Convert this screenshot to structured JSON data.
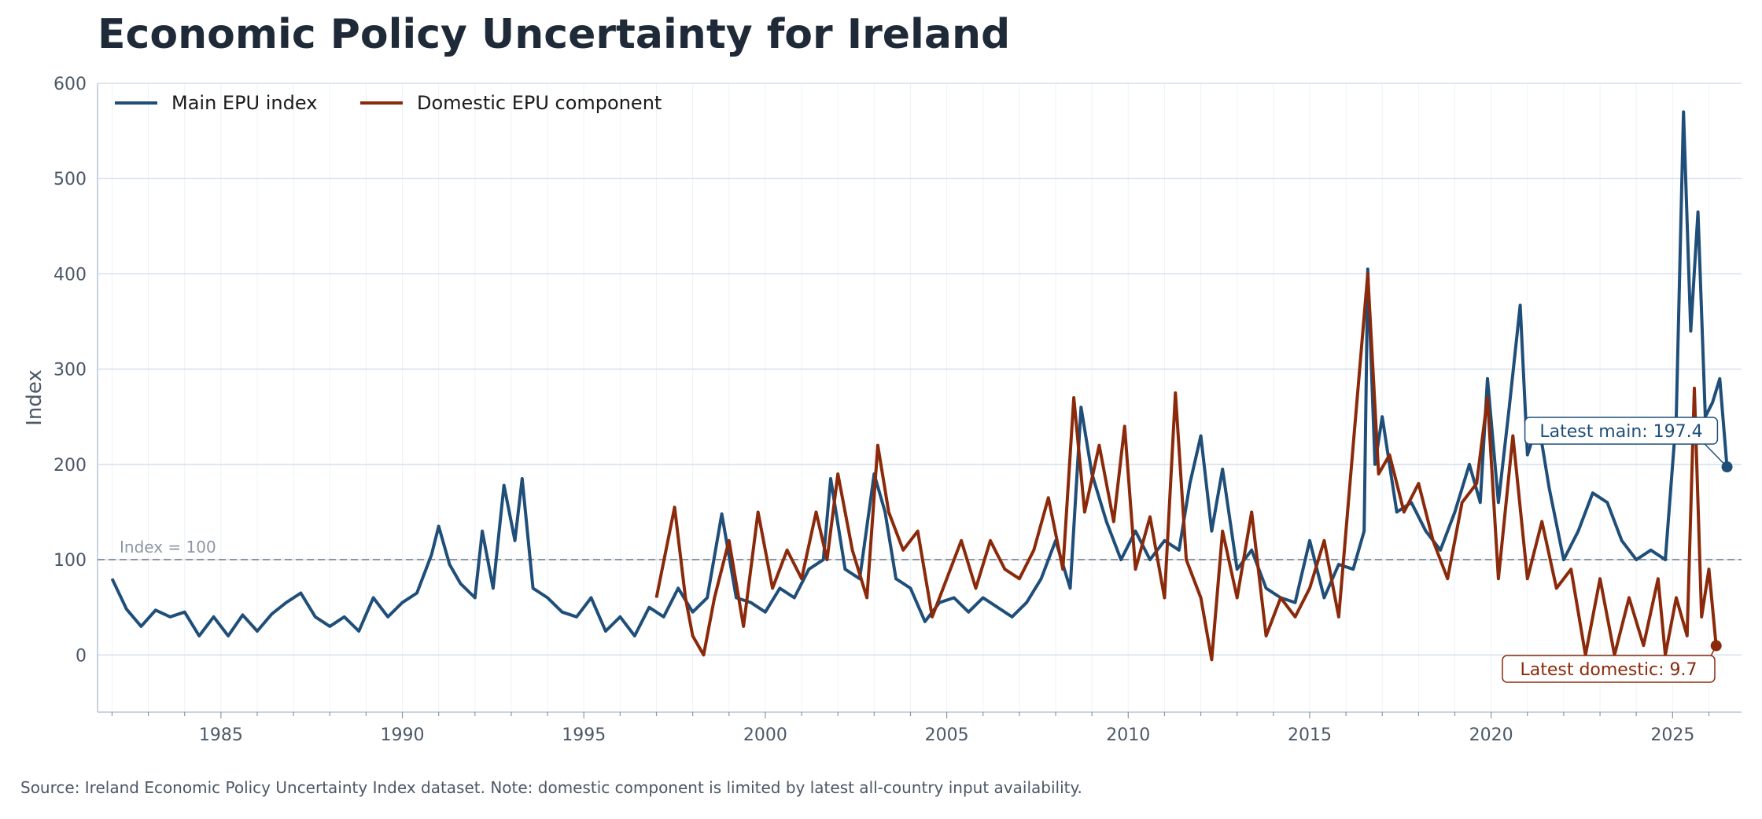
{
  "title": "Economic Policy Uncertainty for Ireland",
  "source_note": "Source: Ireland Economic Policy Uncertainty Index dataset. Note: domestic component is limited by latest all-country input availability.",
  "colors": {
    "main": "#1f4e79",
    "domestic": "#8b2a0a",
    "reference": "#8c96a3",
    "grid": "#d6dfeb",
    "axis_text": "#4c5867"
  },
  "chart_data": {
    "type": "line",
    "title": "Economic Policy Uncertainty for Ireland",
    "xlabel": "",
    "ylabel": "Index",
    "xlim": [
      1981.6,
      2026.9
    ],
    "ylim": [
      -60,
      600
    ],
    "x_ticks": [
      1985,
      1990,
      1995,
      2000,
      2005,
      2010,
      2015,
      2020,
      2025
    ],
    "y_ticks": [
      0,
      100,
      200,
      300,
      400,
      500,
      600
    ],
    "grid": true,
    "legend_position": "top-left",
    "reference_line": {
      "y": 100,
      "label": "Index = 100"
    },
    "series": [
      {
        "name": "Main EPU index",
        "points": [
          [
            1982.0,
            80
          ],
          [
            1982.4,
            48
          ],
          [
            1982.8,
            30
          ],
          [
            1983.2,
            47
          ],
          [
            1983.6,
            40
          ],
          [
            1984.0,
            45
          ],
          [
            1984.4,
            20
          ],
          [
            1984.8,
            40
          ],
          [
            1985.2,
            20
          ],
          [
            1985.6,
            42
          ],
          [
            1986.0,
            25
          ],
          [
            1986.4,
            43
          ],
          [
            1986.8,
            55
          ],
          [
            1987.2,
            65
          ],
          [
            1987.6,
            40
          ],
          [
            1988.0,
            30
          ],
          [
            1988.4,
            40
          ],
          [
            1988.8,
            25
          ],
          [
            1989.2,
            60
          ],
          [
            1989.6,
            40
          ],
          [
            1990.0,
            55
          ],
          [
            1990.4,
            65
          ],
          [
            1990.8,
            105
          ],
          [
            1991.0,
            135
          ],
          [
            1991.3,
            95
          ],
          [
            1991.6,
            75
          ],
          [
            1992.0,
            60
          ],
          [
            1992.2,
            130
          ],
          [
            1992.5,
            70
          ],
          [
            1992.8,
            178
          ],
          [
            1993.1,
            120
          ],
          [
            1993.3,
            185
          ],
          [
            1993.6,
            70
          ],
          [
            1994.0,
            60
          ],
          [
            1994.4,
            45
          ],
          [
            1994.8,
            40
          ],
          [
            1995.2,
            60
          ],
          [
            1995.6,
            25
          ],
          [
            1996.0,
            40
          ],
          [
            1996.4,
            20
          ],
          [
            1996.8,
            50
          ],
          [
            1997.2,
            40
          ],
          [
            1997.6,
            70
          ],
          [
            1998.0,
            45
          ],
          [
            1998.4,
            60
          ],
          [
            1998.8,
            148
          ],
          [
            1999.2,
            60
          ],
          [
            1999.6,
            55
          ],
          [
            2000.0,
            45
          ],
          [
            2000.4,
            70
          ],
          [
            2000.8,
            60
          ],
          [
            2001.2,
            90
          ],
          [
            2001.6,
            100
          ],
          [
            2001.8,
            185
          ],
          [
            2002.2,
            90
          ],
          [
            2002.6,
            80
          ],
          [
            2003.0,
            190
          ],
          [
            2003.3,
            150
          ],
          [
            2003.6,
            80
          ],
          [
            2004.0,
            70
          ],
          [
            2004.4,
            35
          ],
          [
            2004.8,
            55
          ],
          [
            2005.2,
            60
          ],
          [
            2005.6,
            45
          ],
          [
            2006.0,
            60
          ],
          [
            2006.4,
            50
          ],
          [
            2006.8,
            40
          ],
          [
            2007.2,
            55
          ],
          [
            2007.6,
            80
          ],
          [
            2008.0,
            120
          ],
          [
            2008.4,
            70
          ],
          [
            2008.7,
            260
          ],
          [
            2009.0,
            190
          ],
          [
            2009.4,
            140
          ],
          [
            2009.8,
            100
          ],
          [
            2010.2,
            130
          ],
          [
            2010.6,
            100
          ],
          [
            2011.0,
            120
          ],
          [
            2011.4,
            110
          ],
          [
            2011.7,
            180
          ],
          [
            2012.0,
            230
          ],
          [
            2012.3,
            130
          ],
          [
            2012.6,
            195
          ],
          [
            2013.0,
            90
          ],
          [
            2013.4,
            110
          ],
          [
            2013.8,
            70
          ],
          [
            2014.2,
            60
          ],
          [
            2014.6,
            55
          ],
          [
            2015.0,
            120
          ],
          [
            2015.4,
            60
          ],
          [
            2015.8,
            95
          ],
          [
            2016.2,
            90
          ],
          [
            2016.5,
            130
          ],
          [
            2016.6,
            405
          ],
          [
            2016.8,
            200
          ],
          [
            2017.0,
            250
          ],
          [
            2017.4,
            150
          ],
          [
            2017.8,
            160
          ],
          [
            2018.2,
            130
          ],
          [
            2018.6,
            110
          ],
          [
            2019.0,
            150
          ],
          [
            2019.4,
            200
          ],
          [
            2019.7,
            160
          ],
          [
            2019.9,
            290
          ],
          [
            2020.2,
            160
          ],
          [
            2020.5,
            260
          ],
          [
            2020.8,
            367
          ],
          [
            2021.0,
            210
          ],
          [
            2021.3,
            245
          ],
          [
            2021.6,
            175
          ],
          [
            2022.0,
            100
          ],
          [
            2022.4,
            130
          ],
          [
            2022.8,
            170
          ],
          [
            2023.2,
            160
          ],
          [
            2023.6,
            120
          ],
          [
            2024.0,
            100
          ],
          [
            2024.4,
            110
          ],
          [
            2024.8,
            100
          ],
          [
            2025.1,
            250
          ],
          [
            2025.3,
            570
          ],
          [
            2025.5,
            340
          ],
          [
            2025.7,
            465
          ],
          [
            2025.9,
            250
          ],
          [
            2026.1,
            265
          ],
          [
            2026.3,
            290
          ],
          [
            2026.5,
            197.4
          ]
        ]
      },
      {
        "name": "Domestic EPU component",
        "points": [
          [
            1997.0,
            60
          ],
          [
            1997.5,
            155
          ],
          [
            1997.8,
            60
          ],
          [
            1998.0,
            20
          ],
          [
            1998.3,
            0
          ],
          [
            1998.6,
            60
          ],
          [
            1999.0,
            120
          ],
          [
            1999.4,
            30
          ],
          [
            1999.8,
            150
          ],
          [
            2000.2,
            70
          ],
          [
            2000.6,
            110
          ],
          [
            2001.0,
            80
          ],
          [
            2001.4,
            150
          ],
          [
            2001.7,
            100
          ],
          [
            2002.0,
            190
          ],
          [
            2002.4,
            110
          ],
          [
            2002.8,
            60
          ],
          [
            2003.1,
            220
          ],
          [
            2003.4,
            150
          ],
          [
            2003.8,
            110
          ],
          [
            2004.2,
            130
          ],
          [
            2004.6,
            40
          ],
          [
            2005.0,
            80
          ],
          [
            2005.4,
            120
          ],
          [
            2005.8,
            70
          ],
          [
            2006.2,
            120
          ],
          [
            2006.6,
            90
          ],
          [
            2007.0,
            80
          ],
          [
            2007.4,
            110
          ],
          [
            2007.8,
            165
          ],
          [
            2008.2,
            90
          ],
          [
            2008.5,
            270
          ],
          [
            2008.8,
            150
          ],
          [
            2009.2,
            220
          ],
          [
            2009.6,
            140
          ],
          [
            2009.9,
            240
          ],
          [
            2010.2,
            90
          ],
          [
            2010.6,
            145
          ],
          [
            2011.0,
            60
          ],
          [
            2011.3,
            275
          ],
          [
            2011.6,
            100
          ],
          [
            2012.0,
            60
          ],
          [
            2012.3,
            -5
          ],
          [
            2012.6,
            130
          ],
          [
            2013.0,
            60
          ],
          [
            2013.4,
            150
          ],
          [
            2013.8,
            20
          ],
          [
            2014.2,
            60
          ],
          [
            2014.6,
            40
          ],
          [
            2015.0,
            70
          ],
          [
            2015.4,
            120
          ],
          [
            2015.8,
            40
          ],
          [
            2016.2,
            220
          ],
          [
            2016.6,
            400
          ],
          [
            2016.9,
            190
          ],
          [
            2017.2,
            210
          ],
          [
            2017.6,
            150
          ],
          [
            2018.0,
            180
          ],
          [
            2018.4,
            120
          ],
          [
            2018.8,
            80
          ],
          [
            2019.2,
            160
          ],
          [
            2019.6,
            180
          ],
          [
            2019.9,
            270
          ],
          [
            2020.2,
            80
          ],
          [
            2020.6,
            230
          ],
          [
            2021.0,
            80
          ],
          [
            2021.4,
            140
          ],
          [
            2021.8,
            70
          ],
          [
            2022.2,
            90
          ],
          [
            2022.6,
            0
          ],
          [
            2023.0,
            80
          ],
          [
            2023.4,
            0
          ],
          [
            2023.8,
            60
          ],
          [
            2024.2,
            10
          ],
          [
            2024.6,
            80
          ],
          [
            2024.8,
            0
          ],
          [
            2025.1,
            60
          ],
          [
            2025.4,
            20
          ],
          [
            2025.6,
            280
          ],
          [
            2025.8,
            40
          ],
          [
            2026.0,
            90
          ],
          [
            2026.2,
            9.7
          ]
        ]
      }
    ],
    "annotations": [
      {
        "label": "Latest main: 197.4",
        "series": "Main EPU index",
        "value": 197.4
      },
      {
        "label": "Latest domestic: 9.7",
        "series": "Domestic EPU component",
        "value": 9.7
      }
    ]
  }
}
